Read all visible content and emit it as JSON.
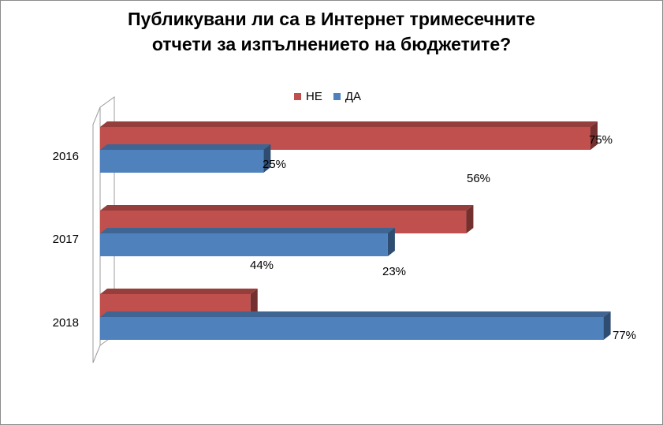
{
  "chart_data": {
    "type": "bar",
    "orientation": "horizontal",
    "title_lines": [
      "Публикувани ли са в Интернет тримесечните",
      "отчети за изпълнението на бюджетите?"
    ],
    "categories": [
      "2016",
      "2017",
      "2018"
    ],
    "series": [
      {
        "name": "НЕ",
        "color": "#C0504D",
        "values": [
          75,
          56,
          23
        ]
      },
      {
        "name": "ДА",
        "color": "#4F81BD",
        "values": [
          25,
          44,
          77
        ]
      }
    ],
    "legend_position": "top",
    "xlim": [
      0,
      80
    ],
    "grid": false,
    "style": "3d"
  }
}
